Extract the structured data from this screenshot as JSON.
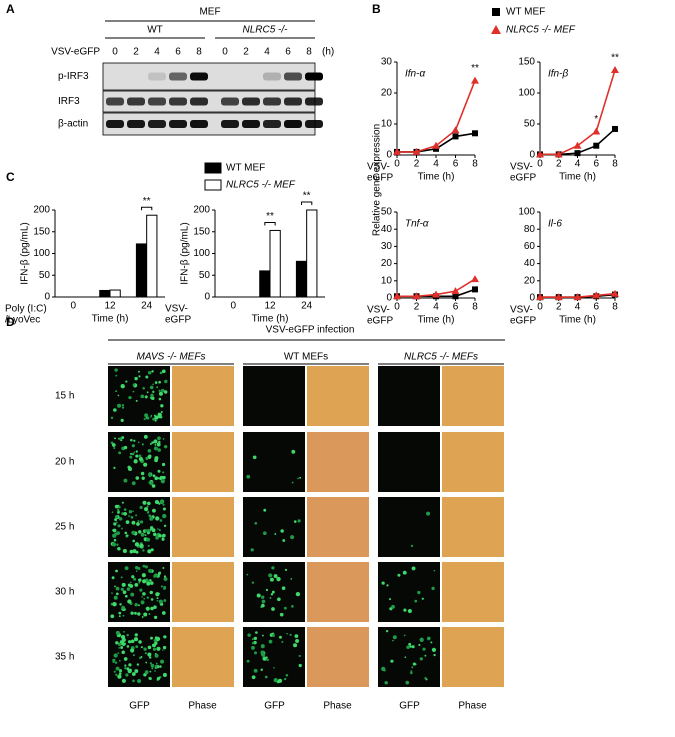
{
  "panel_a": {
    "label": "A",
    "title": "MEF",
    "groups": [
      "WT",
      "NLRC5 -/-"
    ],
    "row_label": "VSV-eGFP",
    "times": [
      "0",
      "2",
      "4",
      "6",
      "8"
    ],
    "unit": "(h)",
    "rows": [
      "p-IRF3",
      "IRF3",
      "β-actin"
    ]
  },
  "chart_data": [
    {
      "type": "line",
      "panel": "B",
      "title": "Ifn-α",
      "ylabel": "Relative gene expression",
      "xlabel": "Time (h)",
      "row_label": [
        "VSV-",
        "eGFP"
      ],
      "x": [
        0,
        2,
        4,
        6,
        8
      ],
      "xlim": [
        0,
        8
      ],
      "xticks": [
        0,
        2,
        4,
        6,
        8
      ],
      "ylim": [
        0,
        30
      ],
      "yticks": [
        0,
        10,
        20,
        30
      ],
      "series": [
        {
          "name": "WT MEF",
          "color": "#000000",
          "marker": "square",
          "values": [
            1,
            1,
            2,
            6,
            7
          ]
        },
        {
          "name": "NLRC5 -/- MEF",
          "color": "#e0302a",
          "marker": "triangle",
          "values": [
            1,
            1,
            3,
            8,
            24
          ]
        }
      ],
      "annotations": [
        {
          "text": "**",
          "x": 8
        }
      ]
    },
    {
      "type": "line",
      "title": "Ifn-β",
      "xlabel": "Time (h)",
      "row_label": [
        "VSV-",
        "eGFP"
      ],
      "x": [
        0,
        2,
        4,
        6,
        8
      ],
      "xlim": [
        0,
        8
      ],
      "xticks": [
        0,
        2,
        4,
        6,
        8
      ],
      "ylim": [
        0,
        150
      ],
      "yticks": [
        0,
        50,
        100,
        150
      ],
      "series": [
        {
          "color": "#000000",
          "marker": "square",
          "values": [
            1,
            1,
            3,
            15,
            42
          ]
        },
        {
          "color": "#e0302a",
          "marker": "triangle",
          "values": [
            1,
            1,
            15,
            38,
            137
          ]
        }
      ],
      "annotations": [
        {
          "text": "*",
          "x": 6
        },
        {
          "text": "**",
          "x": 8
        }
      ]
    },
    {
      "type": "line",
      "title": "Tnf-α",
      "xlabel": "Time (h)",
      "row_label": [
        "VSV-",
        "eGFP"
      ],
      "x": [
        0,
        2,
        4,
        6,
        8
      ],
      "xlim": [
        0,
        8
      ],
      "xticks": [
        0,
        2,
        4,
        6,
        8
      ],
      "ylim": [
        0,
        50
      ],
      "yticks": [
        0,
        10,
        20,
        30,
        40,
        50
      ],
      "series": [
        {
          "color": "#000000",
          "marker": "square",
          "values": [
            1,
            1,
            1,
            1,
            5
          ]
        },
        {
          "color": "#e0302a",
          "marker": "triangle",
          "values": [
            1,
            1,
            2,
            4,
            11
          ]
        }
      ],
      "annotations": []
    },
    {
      "type": "line",
      "title": "Il-6",
      "xlabel": "Time (h)",
      "row_label": [
        "VSV-",
        "eGFP"
      ],
      "x": [
        0,
        2,
        4,
        6,
        8
      ],
      "xlim": [
        0,
        8
      ],
      "xticks": [
        0,
        2,
        4,
        6,
        8
      ],
      "ylim": [
        0,
        100
      ],
      "yticks": [
        0,
        20,
        40,
        60,
        80,
        100
      ],
      "series": [
        {
          "color": "#000000",
          "marker": "square",
          "values": [
            1,
            1,
            1,
            2,
            4
          ]
        },
        {
          "color": "#e0302a",
          "marker": "triangle",
          "values": [
            1,
            1,
            1,
            3,
            5
          ]
        }
      ],
      "annotations": []
    },
    {
      "type": "bar",
      "panel": "C",
      "ylabel": "IFN-β (pg/mL)",
      "xlabel": "Time (h)",
      "row_label": [
        "Poly (I:C)",
        "/LyoVec"
      ],
      "categories": [
        "0",
        "12",
        "24"
      ],
      "ylim": [
        0,
        200
      ],
      "yticks": [
        0,
        50,
        100,
        150,
        200
      ],
      "series": [
        {
          "name": "WT MEF",
          "color": "#000000",
          "values": [
            0,
            15,
            122
          ]
        },
        {
          "name": "NLRC5 -/- MEF",
          "color": "#ffffff",
          "values": [
            0,
            16,
            188
          ]
        }
      ],
      "annotations": [
        {
          "text": "**",
          "category": 2
        }
      ]
    },
    {
      "type": "bar",
      "ylabel": "IFN-β (pg/mL)",
      "xlabel": "Time (h)",
      "row_label": [
        "VSV-",
        "eGFP"
      ],
      "categories": [
        "0",
        "12",
        "24"
      ],
      "ylim": [
        0,
        200
      ],
      "yticks": [
        0,
        50,
        100,
        150,
        200
      ],
      "series": [
        {
          "color": "#000000",
          "values": [
            0,
            60,
            82
          ]
        },
        {
          "color": "#ffffff",
          "values": [
            0,
            153,
            200
          ]
        }
      ],
      "annotations": [
        {
          "text": "**",
          "category": 1
        },
        {
          "text": "**",
          "category": 2
        }
      ]
    }
  ],
  "panel_d": {
    "label": "D",
    "title": "VSV-eGFP infection",
    "groups": [
      "MAVS -/- MEFs",
      "WT MEFs",
      "NLRC5 -/- MEFs"
    ],
    "rows": [
      "15 h",
      "20 h",
      "25 h",
      "30 h",
      "35 h"
    ],
    "columns": [
      "GFP",
      "Phase"
    ]
  }
}
